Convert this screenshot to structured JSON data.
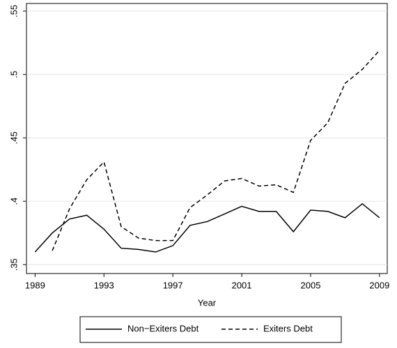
{
  "chart_data": {
    "type": "line",
    "x_label": "Year",
    "x": [
      1989,
      1990,
      1991,
      1992,
      1993,
      1994,
      1995,
      1996,
      1997,
      1998,
      1999,
      2000,
      2001,
      2002,
      2003,
      2004,
      2005,
      2006,
      2007,
      2008,
      2009
    ],
    "series": [
      {
        "name": "Non−Exiters Debt",
        "color": "#000000",
        "dash": "solid",
        "values": [
          0.36,
          0.375,
          0.386,
          0.389,
          0.378,
          0.363,
          0.362,
          0.36,
          0.365,
          0.381,
          0.384,
          0.39,
          0.396,
          0.392,
          0.392,
          0.376,
          0.393,
          0.392,
          0.387,
          0.398,
          0.387
        ]
      },
      {
        "name": "Exiters Debt",
        "color": "#000000",
        "dash": "dashed",
        "values": [
          null,
          0.361,
          0.394,
          0.417,
          0.431,
          0.38,
          0.371,
          0.369,
          0.369,
          0.395,
          0.405,
          0.416,
          0.418,
          0.412,
          0.413,
          0.407,
          0.448,
          0.462,
          0.493,
          0.504,
          0.519
        ]
      }
    ],
    "xlim": [
      1988.5,
      2009.45
    ],
    "xticks": [
      1989,
      1993,
      1997,
      2001,
      2005,
      2009
    ],
    "ylim": [
      0.343,
      0.556
    ],
    "yticks": [
      {
        "value": 0.35,
        "label": ".35"
      },
      {
        "value": 0.4,
        "label": ".4"
      },
      {
        "value": 0.45,
        "label": ".45"
      },
      {
        "value": 0.5,
        "label": ".5"
      },
      {
        "value": 0.55,
        "label": ".55"
      }
    ],
    "grid": true,
    "legend": "bottom"
  }
}
